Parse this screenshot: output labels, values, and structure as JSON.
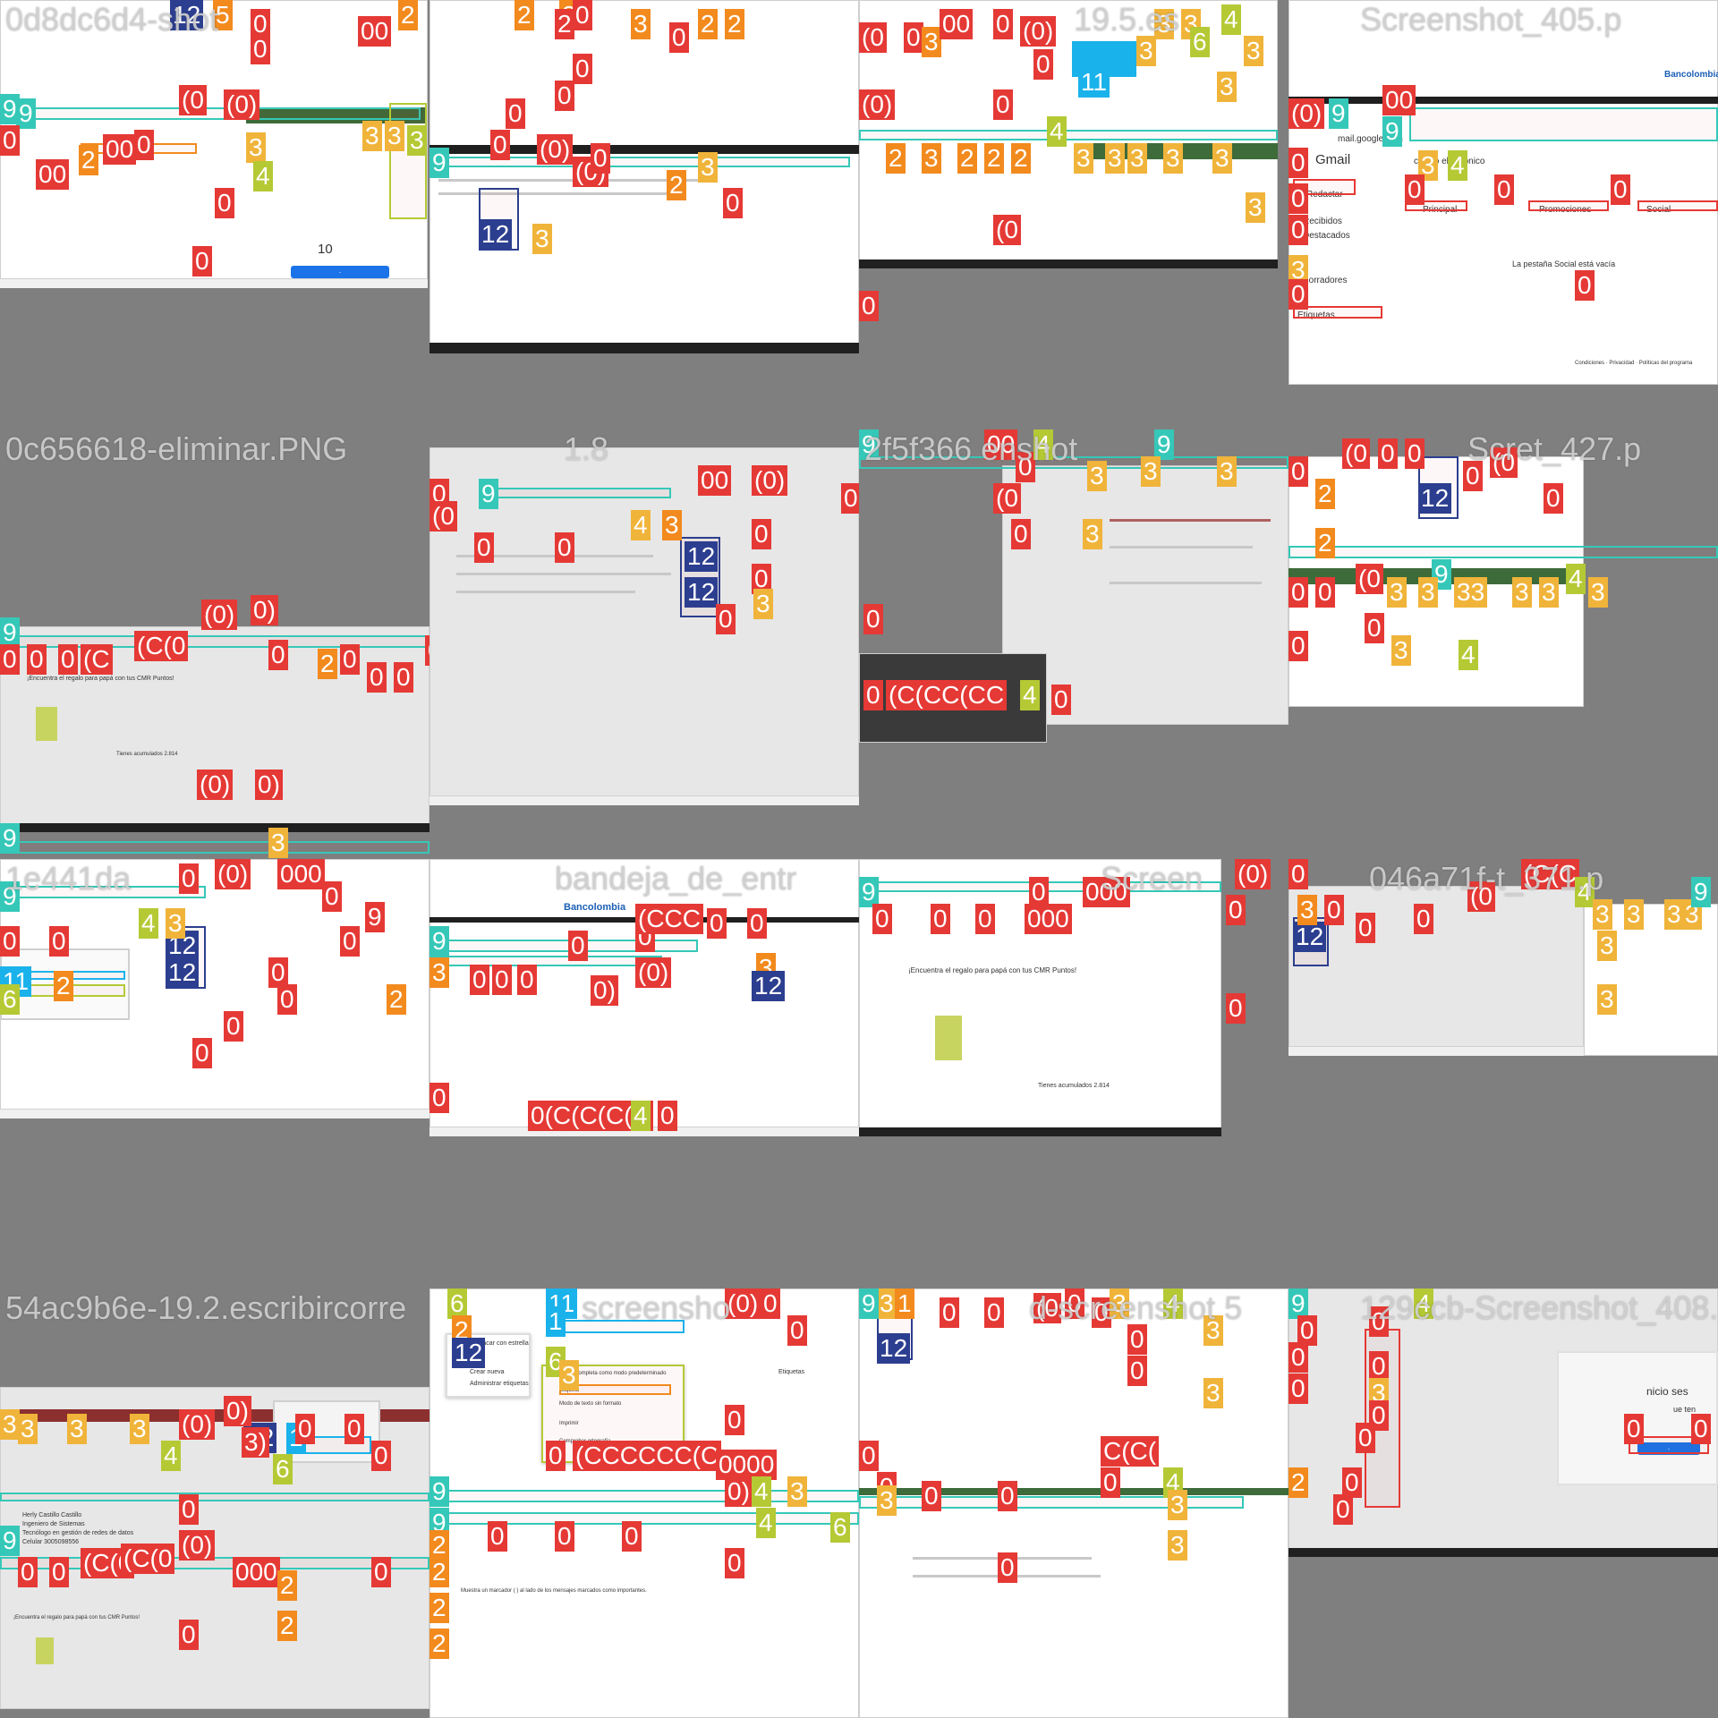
{
  "tiles": [
    {
      "title": "0d8dc6d4-",
      "suffix": "shot",
      "texts": {
        "version": "10",
        "url": ""
      }
    },
    {
      "title": ""
    },
    {
      "title": "19.5.es"
    },
    {
      "title": "Screenshot_405.p",
      "gmail": {
        "app_name": "Gmail",
        "address": "mail.google.com",
        "search_placeholder": "correo electrónico",
        "compose": "Redactar",
        "inbox": "Recibidos",
        "starred": "Destacados",
        "drafts": "Borradores",
        "labels": "Etiquetas",
        "tab_primary": "Principal",
        "tab_promotions": "Promociones",
        "tab_social": "Social",
        "empty_title": "La pestaña Social está vacía",
        "brand": "Bancolombia",
        "footer": "Condiciones · Privacidad · Políticas del programa"
      }
    },
    {
      "title": "0c656618-eliminar.PNG",
      "email_subject": "¡Encuentra el regalo para papá con tus CMR Puntos!",
      "points": "Tienes acumulados 2.814"
    },
    {
      "title": "1.8"
    },
    {
      "title": "2f5f366",
      "suffix": "enshot"
    },
    {
      "title": "Scre",
      "suffix": "t_427.p"
    },
    {
      "title": "1e441da",
      "calendar_value": "12"
    },
    {
      "title": "bandeja_de_entr",
      "brand": "Bancolombia"
    },
    {
      "title": "Screen",
      "email_subject": "¡Encuentra el regalo para papá con tus CMR Puntos!",
      "points": "Tienes acumulados 2.814"
    },
    {
      "title": "046a71f-",
      "suffix": "t_371.p"
    },
    {
      "title": "54ac9b6e-19.2.escribircorre",
      "signature_name": "Herly Castillo Castillo",
      "signature_role": "Ingeniero de Sistemas",
      "signature_dept": "Tecnólogo en gestión de redes de datos",
      "signature_phone": "Celular 3005098556",
      "email_subject": "¡Encuentra el regalo para papá con tus CMR Puntos!"
    },
    {
      "title": "screensho",
      "menu": {
        "item_1": "Destacar con estrella",
        "item_2": "Crear nueva",
        "item_3": "Administrar etiquetas",
        "item_4": "Pantalla completa como modo predeterminado",
        "item_5": "Etiqueta",
        "item_6": "Modo de texto sin formato",
        "item_7": "Imprimir",
        "item_8": "Comprobar ortografía"
      },
      "labels_link": "Etiquetas",
      "important_hint": "Muestra un marcador ( ) al lado de los mensajes marcados como importantes."
    },
    {
      "title": "d-screenshot",
      "suffix": "5"
    },
    {
      "title": "129ccb-Screenshot_408.p",
      "dialog_title": "nicio ses",
      "dialog_text": "ue ten"
    }
  ],
  "colors": {
    "red": "#e53935",
    "orange": "#f28a1e",
    "yellow": "#f0b43a",
    "lime": "#b5c935",
    "teal": "#35c8b8",
    "sky": "#1ab2ea",
    "navy": "#2c3e8f",
    "background": "#7f7f7f"
  }
}
